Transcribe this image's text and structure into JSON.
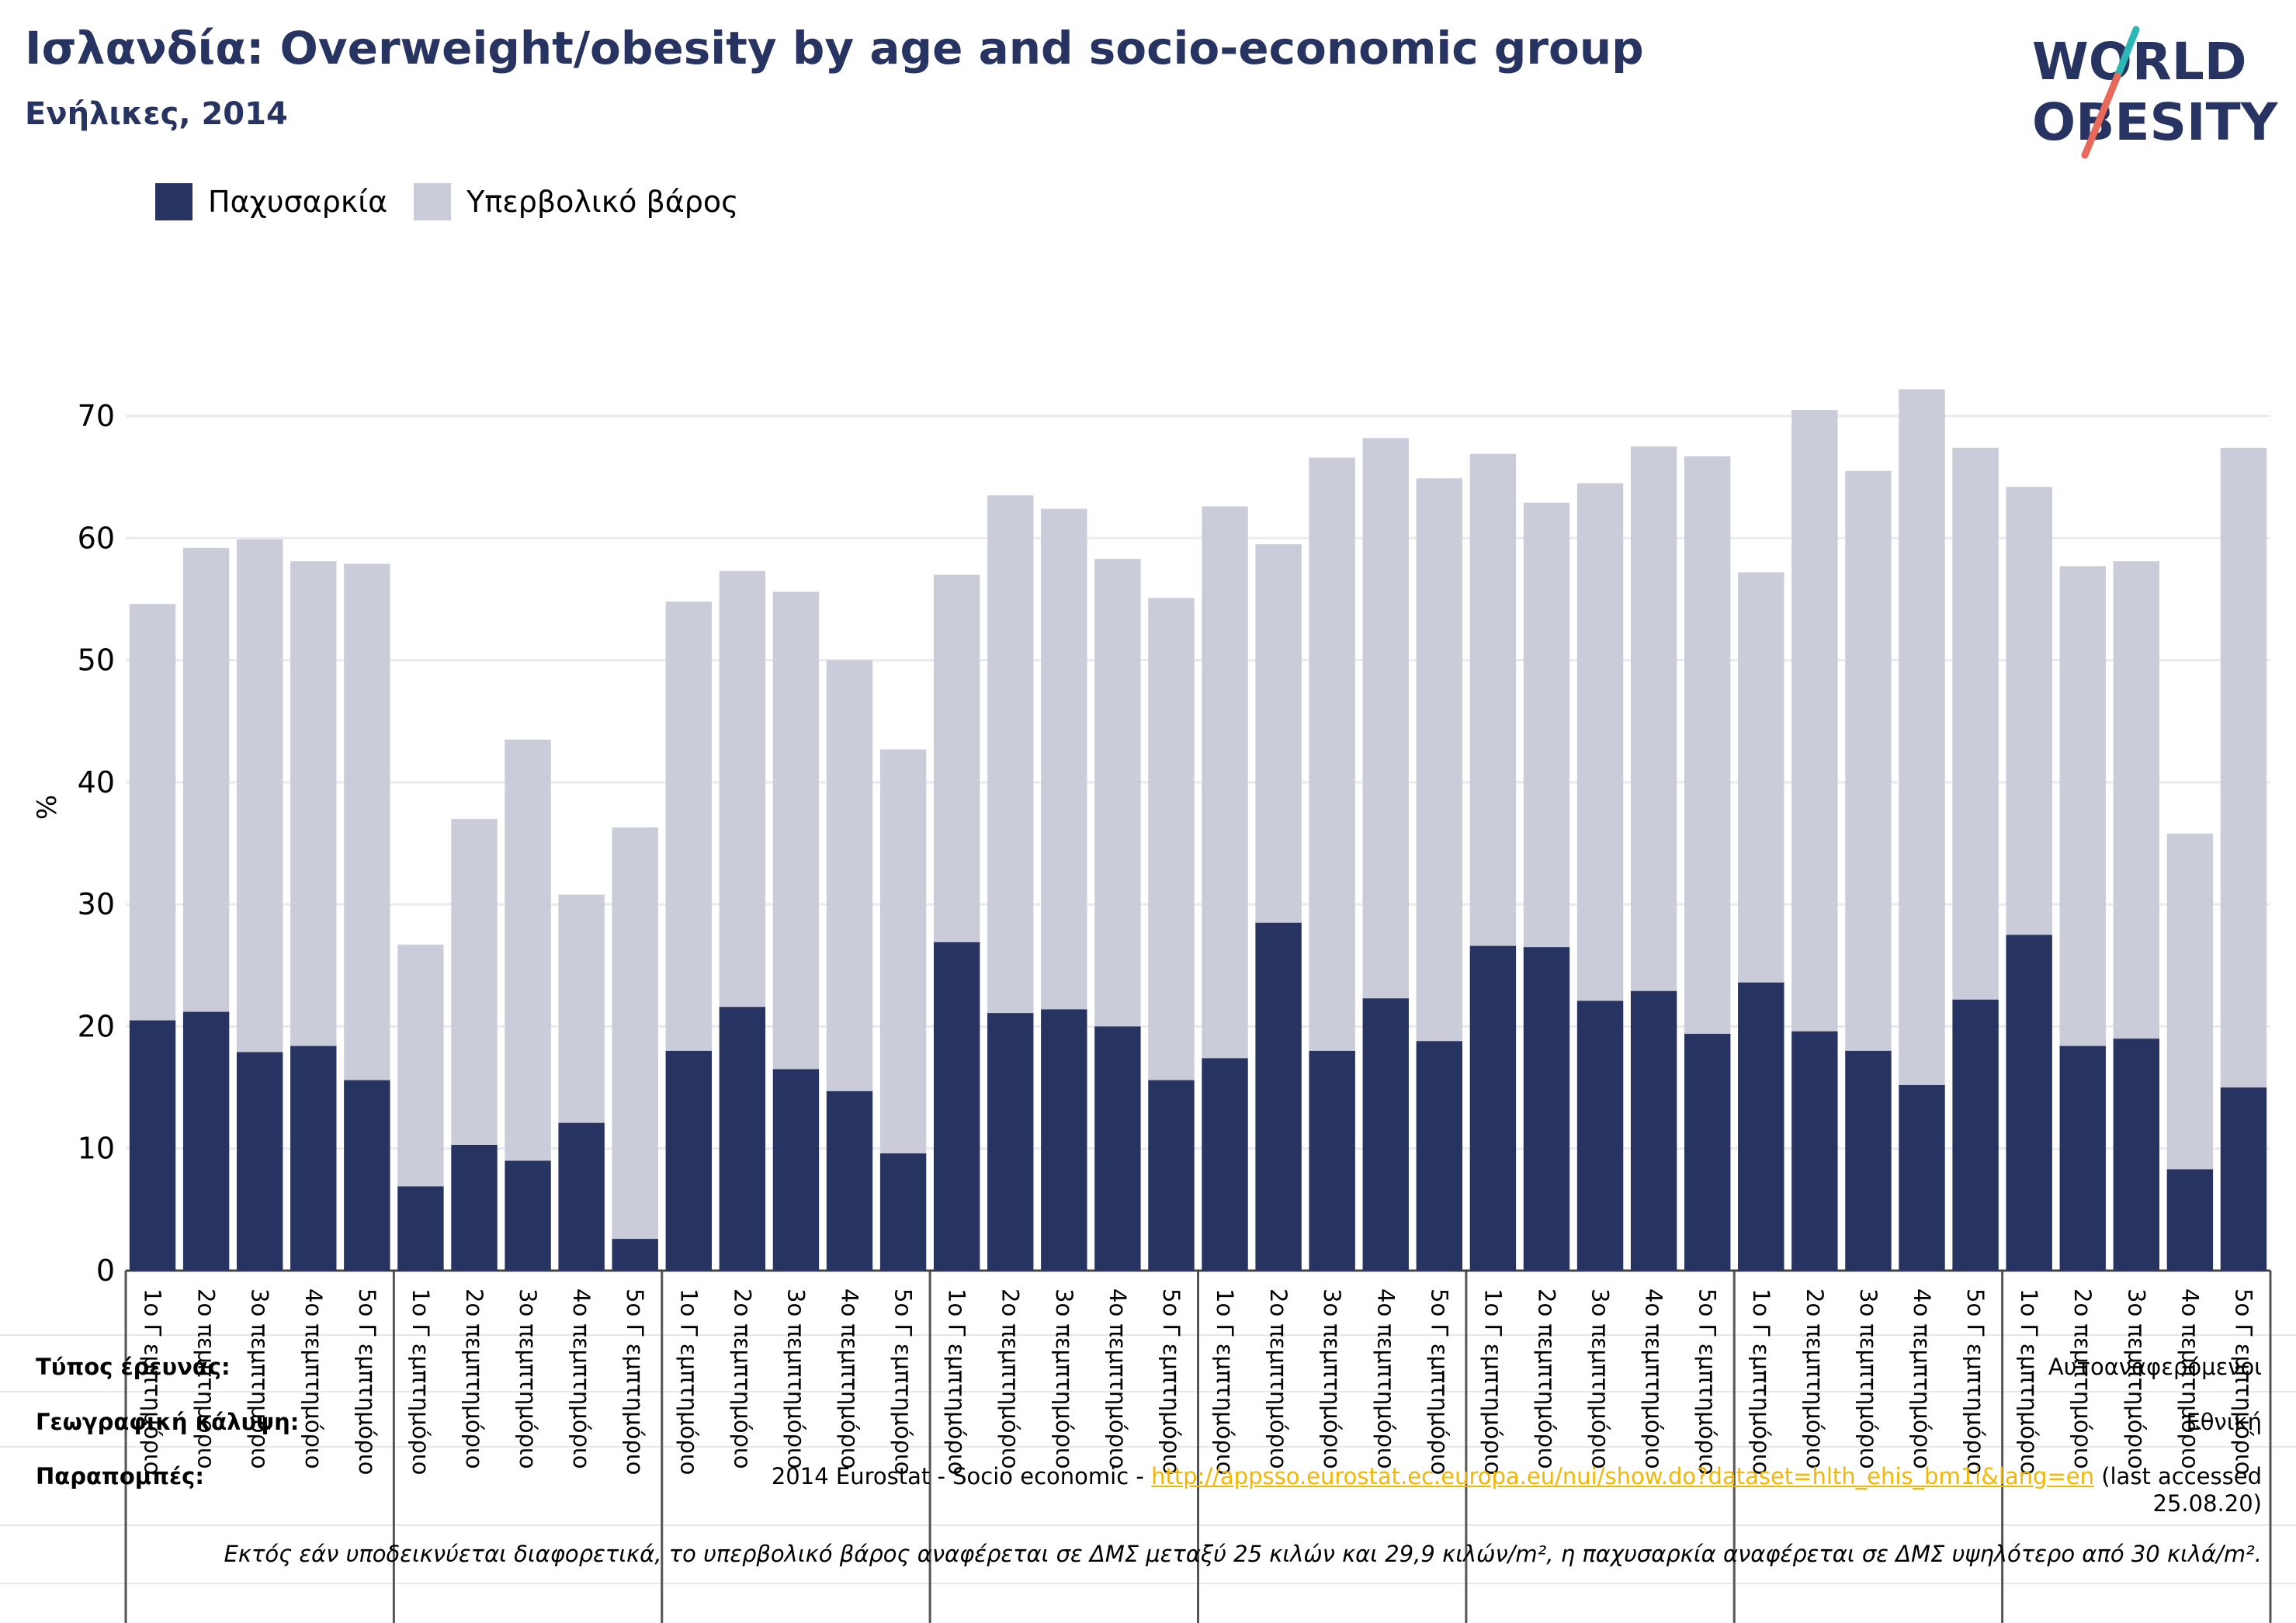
{
  "header": {
    "title": "Ισλανδία: Overweight/obesity by age and socio-economic group",
    "subtitle": "Ενήλικες, 2014"
  },
  "logo": {
    "line1": "WORLD",
    "line2": "OBESITY"
  },
  "legend": [
    {
      "label": "Παχυσαρκία",
      "color": "#273360"
    },
    {
      "label": "Υπερβολικό βάρος",
      "color": "#cbccd9"
    }
  ],
  "chart_data": {
    "type": "bar",
    "stacked": true,
    "ylabel": "%",
    "ylim": [
      0,
      70
    ],
    "yticks": [
      0,
      10,
      20,
      30,
      40,
      50,
      60,
      70
    ],
    "grid": true,
    "legend_position": "top-left",
    "categories": [
      "1ο Γ εμπτημόριο",
      "2ο πεμπτημόριο",
      "3ο πεμπτημόριο",
      "4ο πεμπτημόριο",
      "5ο Γ εμπτημόριο",
      "1ο Γ εμπτημόριο",
      "2ο πεμπτημόριο",
      "3ο πεμπτημόριο",
      "4ο πεμπτημόριο",
      "5ο Γ εμπτημόριο",
      "1ο Γ εμπτημόριο",
      "2ο πεμπτημόριο",
      "3ο πεμπτημόριο",
      "4ο πεμπτημόριο",
      "5ο Γ εμπτημόριο",
      "1ο Γ εμπτημόριο",
      "2ο πεμπτημόριο",
      "3ο πεμπτημόριο",
      "4ο πεμπτημόριο",
      "5ο Γ εμπτημόριο",
      "1ο Γ εμπτημόριο",
      "2ο πεμπτημόριο",
      "3ο πεμπτημόριο",
      "4ο πεμπτημόριο",
      "5ο Γ εμπτημόριο",
      "1ο Γ εμπτημόριο",
      "2ο πεμπτημόριο",
      "3ο πεμπτημόριο",
      "4ο πεμπτημόριο",
      "5ο Γ εμπτημόριο",
      "1ο Γ εμπτημόριο",
      "2ο πεμπτημόριο",
      "3ο πεμπτημόριο",
      "4ο πεμπτημόριο",
      "5ο Γ εμπτημόριο",
      "1ο Γ εμπτημόριο",
      "2ο πεμπτημόριο",
      "3ο πεμπτημόριο",
      "4ο πεμπτημόριο",
      "5ο Γ εμπτημόριο"
    ],
    "group_size": 5,
    "series": [
      {
        "name": "Παχυσαρκία",
        "color": "#273360",
        "values": [
          20.5,
          21.2,
          17.9,
          18.4,
          15.6,
          6.9,
          10.3,
          9.0,
          12.1,
          2.6,
          18.0,
          21.6,
          16.5,
          14.7,
          9.6,
          26.9,
          21.1,
          21.4,
          20.0,
          15.6,
          17.4,
          28.5,
          18.0,
          22.3,
          18.8,
          26.6,
          26.5,
          22.1,
          22.9,
          19.4,
          23.6,
          19.6,
          18.0,
          15.2,
          22.2,
          27.5,
          18.4,
          19.0,
          8.3,
          15.0
        ]
      },
      {
        "name": "Υπερβολικό βάρος",
        "color": "#cbccd9",
        "values": [
          34.1,
          38.0,
          42.0,
          39.7,
          42.3,
          19.8,
          26.7,
          34.5,
          18.7,
          33.7,
          36.8,
          35.7,
          39.1,
          35.3,
          33.1,
          30.1,
          42.4,
          41.0,
          38.3,
          39.5,
          45.2,
          31.0,
          48.6,
          45.9,
          46.1,
          40.3,
          36.4,
          42.4,
          44.6,
          47.3,
          33.6,
          50.9,
          47.5,
          57.0,
          45.2,
          36.7,
          39.3,
          39.1,
          27.5,
          52.4
        ]
      }
    ]
  },
  "footer": {
    "survey_type_label": "Τύπος έρευνας:",
    "survey_type_value": "Αυτοαναφερόμενοι",
    "coverage_label": "Γεωγραφική κάλυψη:",
    "coverage_value": "Εθνική",
    "references_label": "Παραπομπές:",
    "references_prefix": "2014 Eurostat - Socio economic - ",
    "references_link": "http://appsso.eurostat.ec.europa.eu/nui/show.do?dataset=hlth_ehis_bm1i&lang=en",
    "references_suffix1": "(last accessed",
    "references_suffix2": "25.08.20)",
    "note": "Εκτός εάν υποδεικνύεται διαφορετικά, το υπερβολικό βάρος αναφέρεται σε ΔΜΣ μεταξύ 25 κιλών και 29,9 κιλών/m², η παχυσαρκία αναφέρεται σε ΔΜΣ υψηλότερο από 30 κιλά/m²."
  }
}
